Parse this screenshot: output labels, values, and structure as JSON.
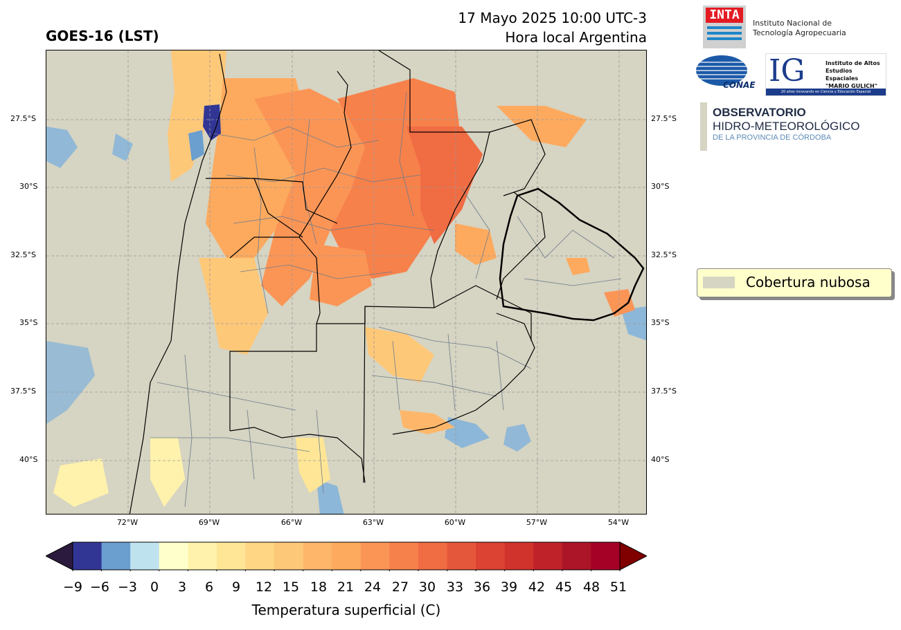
{
  "header": {
    "title": "GOES-16 (LST)",
    "date_line": "17 Mayo 2025 10:00 UTC-3",
    "local_line": "Hora local Argentina"
  },
  "map": {
    "lat_ticks": [
      "27.5°S",
      "30°S",
      "32.5°S",
      "35°S",
      "37.5°S",
      "40°S"
    ],
    "lon_ticks": [
      "72°W",
      "69°W",
      "66°W",
      "63°W",
      "60°W",
      "57°W",
      "54°W"
    ],
    "cloud_color": "#d6d4c2"
  },
  "colorbar": {
    "ticks": [
      "−9",
      "−6",
      "−3",
      "0",
      "3",
      "6",
      "9",
      "12",
      "15",
      "18",
      "21",
      "24",
      "27",
      "30",
      "33",
      "36",
      "39",
      "42",
      "45",
      "48",
      "51"
    ],
    "label": "Temperatura superficial (C)",
    "colors": [
      "#313695",
      "#6a9fd0",
      "#bfe2ef",
      "#ffffcc",
      "#fff2ac",
      "#ffe696",
      "#fed684",
      "#fec879",
      "#feb76a",
      "#fdaa5e",
      "#fb9556",
      "#f7814b",
      "#f06c43",
      "#e5573a",
      "#dc4332",
      "#d0332b",
      "#c02229",
      "#ac1528",
      "#a50026"
    ],
    "under_color": "#2b1a3d",
    "over_color": "#800000"
  },
  "legend": {
    "label": "Cobertura nubosa"
  },
  "logos": {
    "inta_mark": "INTA",
    "inta_name_1": "Instituto Nacional de",
    "inta_name_2": "Tecnología Agropecuaria",
    "conae": "CONAE",
    "ig_mark": "IG",
    "ig_line_1": "Instituto de Altos",
    "ig_line_2": "Estudios Espaciales",
    "ig_line_3": "\"MARIO GULICH\"",
    "ig_footer": "20 años innovando en Ciencia y Educación Espacial",
    "obs_line_1": "OBSERVATORIO",
    "obs_line_2": "HIDRO-METEOROLÓGICO",
    "obs_line_3": "DE LA PROVINCIA DE CÓRDOBA"
  }
}
